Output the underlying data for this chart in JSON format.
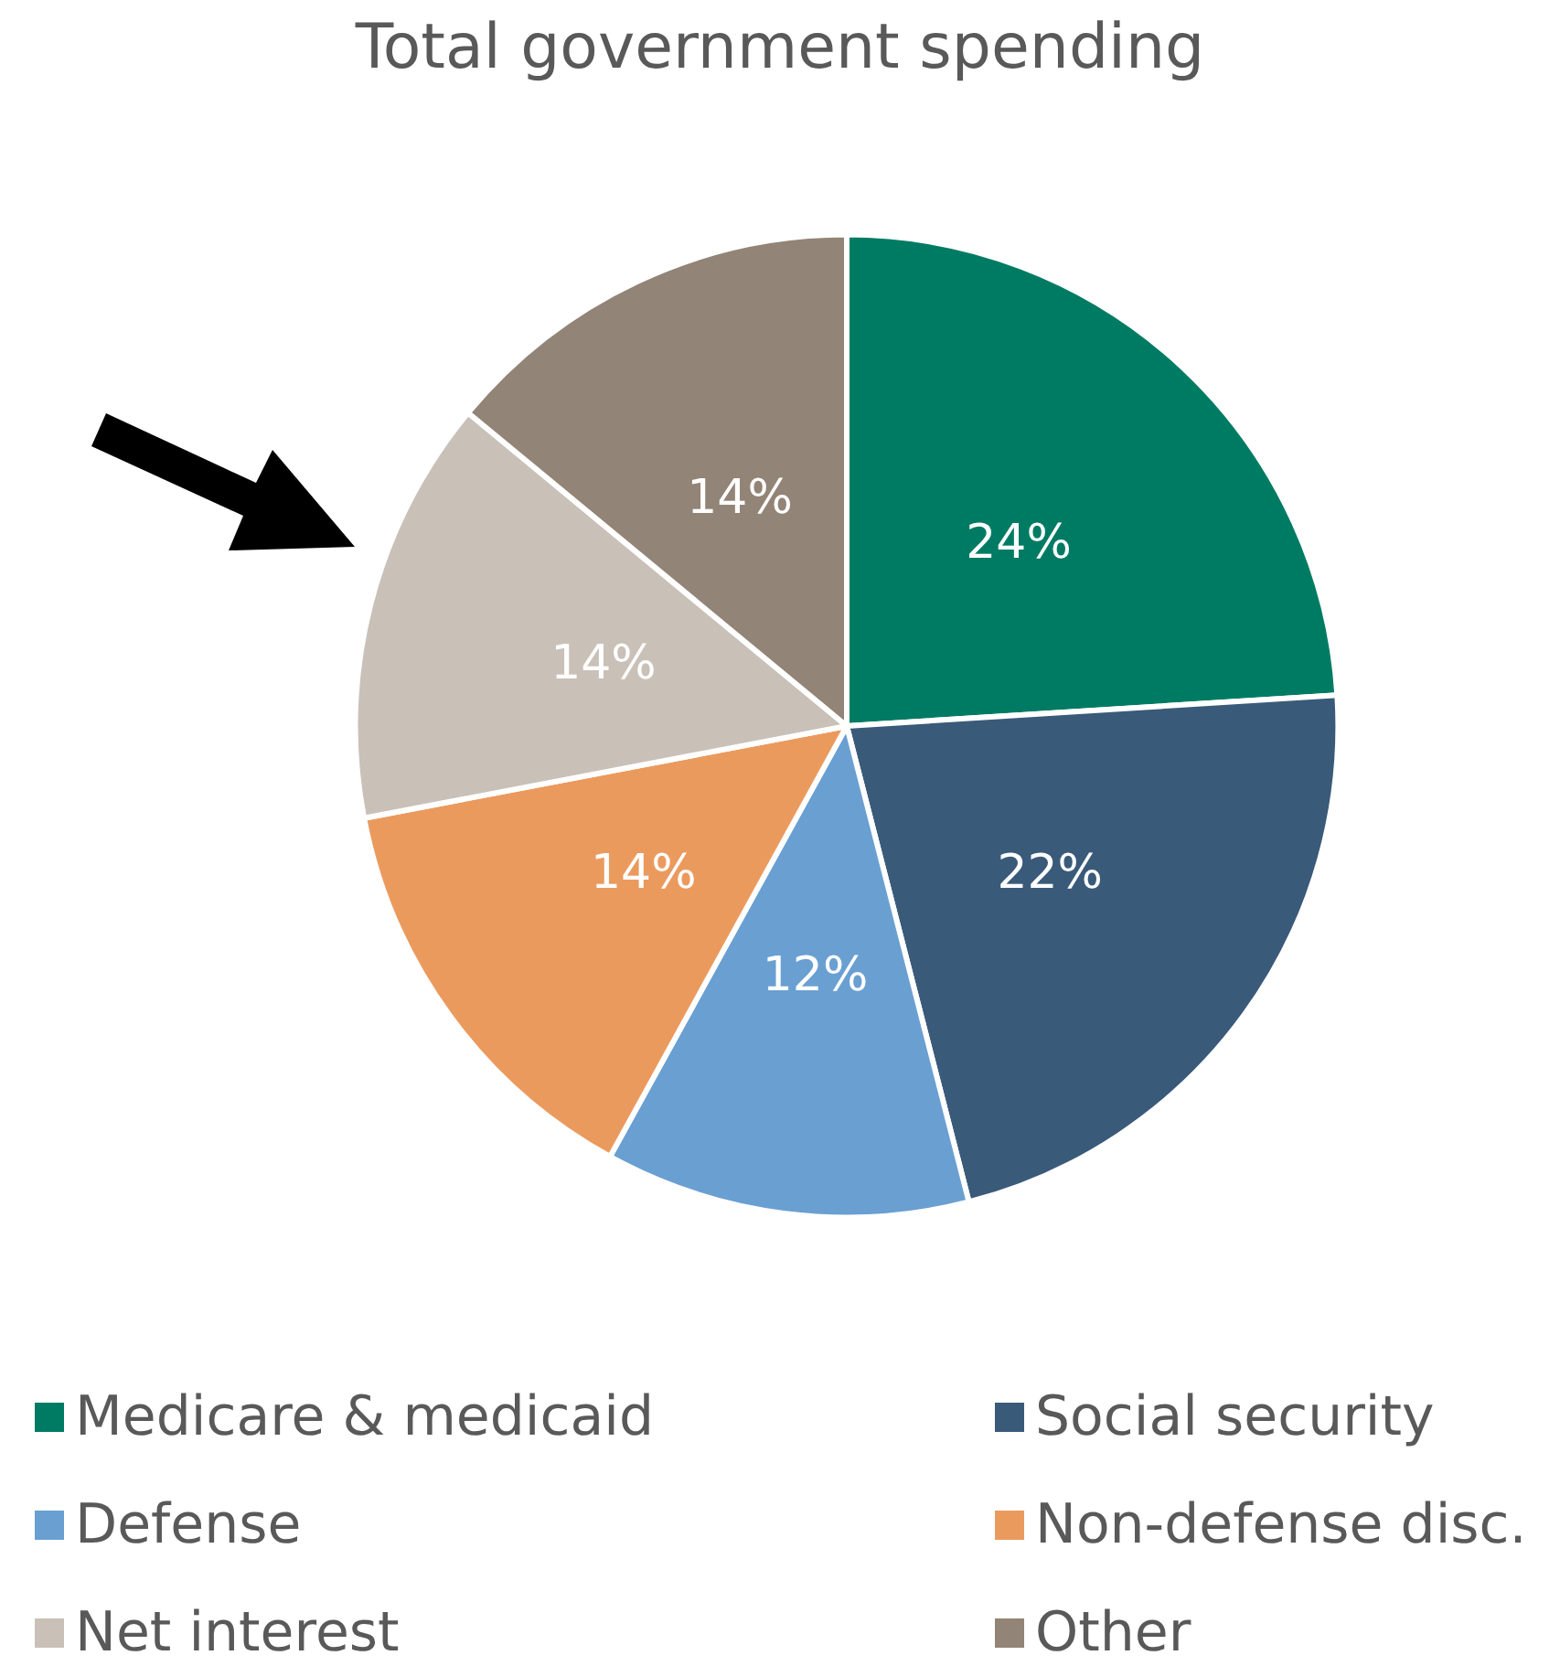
{
  "chart_data": {
    "type": "pie",
    "title": "Total government spending",
    "categories": [
      "Medicare & medicaid",
      "Social security",
      "Defense",
      "Non-defense disc.",
      "Net interest",
      "Other"
    ],
    "values": [
      24,
      22,
      12,
      14,
      14,
      14
    ],
    "colors": [
      "#007b63",
      "#3a5a7a",
      "#6a9fd1",
      "#eb9a5e",
      "#c9c0b8",
      "#928476"
    ],
    "value_labels": [
      "24%",
      "22%",
      "12%",
      "14%",
      "14%",
      "14%"
    ],
    "legend": "bottom"
  }
}
